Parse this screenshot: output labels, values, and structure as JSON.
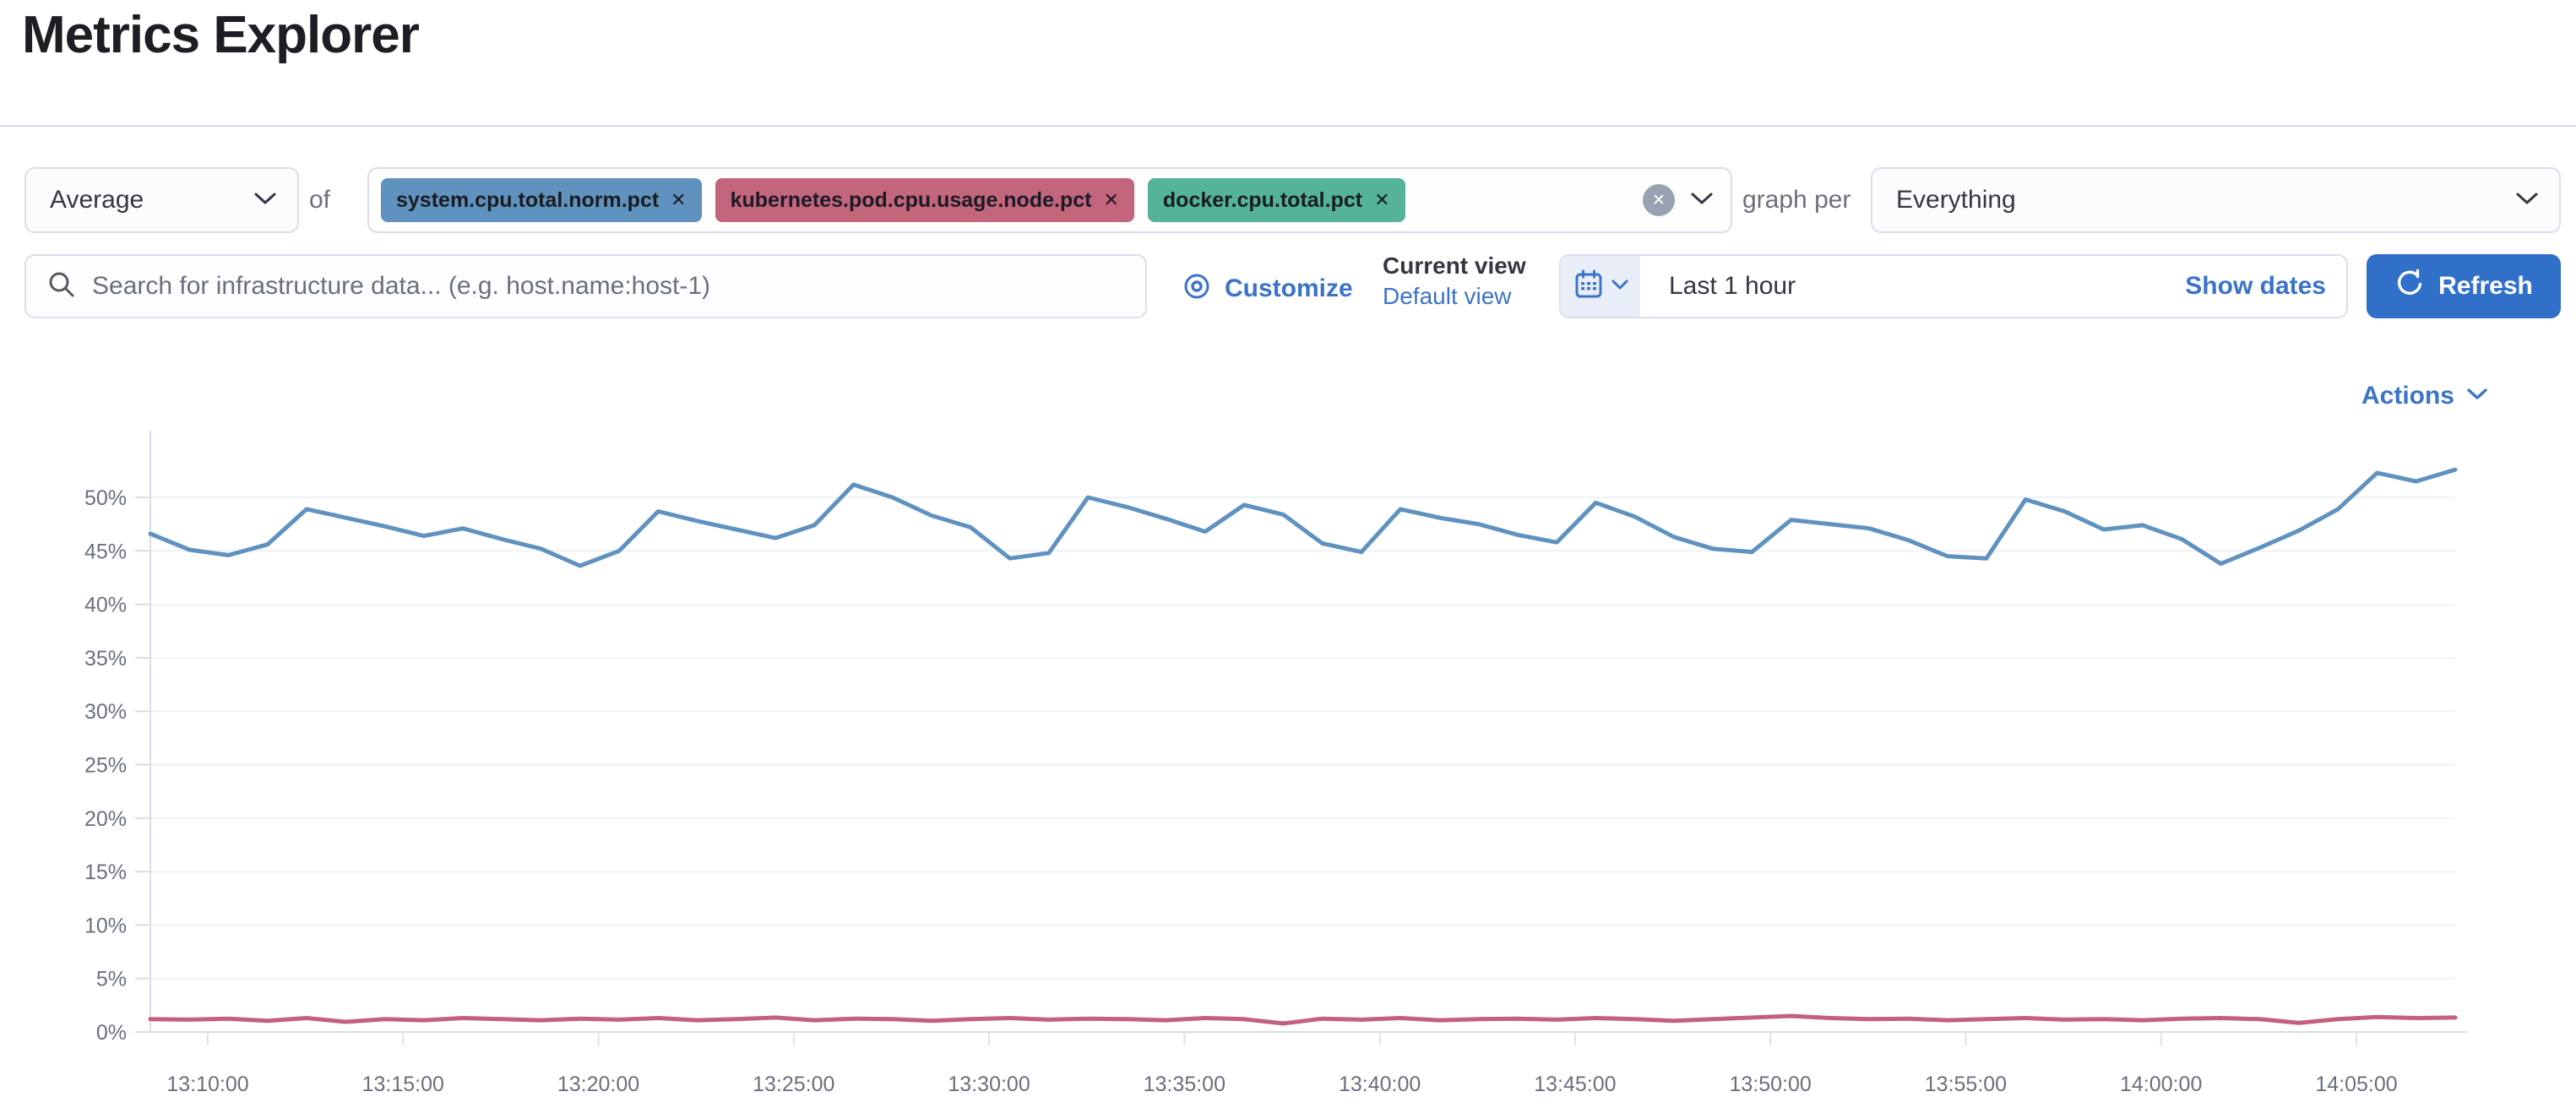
{
  "header": {
    "title": "Metrics Explorer"
  },
  "toolbar": {
    "aggregation": {
      "value": "Average"
    },
    "of_label": "of",
    "metrics": [
      {
        "label": "system.cpu.total.norm.pct",
        "color": "#6092C0"
      },
      {
        "label": "kubernetes.pod.cpu.usage.node.pct",
        "color": "#C4657E"
      },
      {
        "label": "docker.cpu.total.pct",
        "color": "#54B399"
      }
    ],
    "remove_glyph": "✕",
    "graph_per_label": "graph per",
    "group_by": {
      "value": "Everything"
    }
  },
  "search": {
    "placeholder": "Search for infrastructure data... (e.g. host.name:host-1)"
  },
  "view_controls": {
    "customize_label": "Customize",
    "current_view_label": "Current view",
    "default_view_label": "Default view"
  },
  "time_picker": {
    "value": "Last 1 hour",
    "show_dates_label": "Show dates",
    "refresh_label": "Refresh"
  },
  "actions_label": "Actions",
  "chart_data": {
    "type": "line",
    "title": "",
    "xlabel": "",
    "ylabel": "",
    "grid": true,
    "legend": "none",
    "ylim": [
      0,
      55
    ],
    "ytick_step": 5,
    "y_ticks": [
      "0%",
      "5%",
      "10%",
      "15%",
      "20%",
      "25%",
      "30%",
      "35%",
      "40%",
      "45%",
      "50%"
    ],
    "x_total_min": 59,
    "sample_interval_min": 1,
    "x_ticks": [
      {
        "offset": 1.47,
        "label": "13:10:00"
      },
      {
        "offset": 6.47,
        "label": "13:15:00"
      },
      {
        "offset": 11.47,
        "label": "13:20:00"
      },
      {
        "offset": 16.47,
        "label": "13:25:00"
      },
      {
        "offset": 21.47,
        "label": "13:30:00"
      },
      {
        "offset": 26.47,
        "label": "13:35:00"
      },
      {
        "offset": 31.47,
        "label": "13:40:00"
      },
      {
        "offset": 36.47,
        "label": "13:45:00"
      },
      {
        "offset": 41.47,
        "label": "13:50:00"
      },
      {
        "offset": 46.47,
        "label": "13:55:00"
      },
      {
        "offset": 51.47,
        "label": "14:00:00"
      },
      {
        "offset": 56.47,
        "label": "14:05:00"
      }
    ],
    "series": [
      {
        "name": "system.cpu.total.norm.pct",
        "color": "#6092C0",
        "values": [
          46.6,
          45.1,
          44.6,
          45.6,
          48.9,
          48.1,
          47.3,
          46.4,
          47.1,
          46.1,
          45.2,
          43.6,
          45.0,
          48.7,
          47.8,
          47.0,
          46.2,
          47.4,
          51.2,
          50.0,
          48.3,
          47.2,
          44.3,
          44.8,
          50.0,
          49.1,
          48.0,
          46.8,
          49.3,
          48.4,
          45.7,
          44.9,
          48.9,
          48.1,
          47.5,
          46.5,
          45.8,
          49.5,
          48.2,
          46.3,
          45.2,
          44.9,
          47.9,
          47.5,
          47.1,
          46.0,
          44.5,
          44.3,
          49.8,
          48.7,
          47.0,
          47.4,
          46.1,
          43.8,
          45.3,
          46.9,
          48.9,
          52.3,
          51.5,
          52.6
        ]
      },
      {
        "name": "kubernetes.pod.cpu.usage.node.pct",
        "color": "#C4607D",
        "values": [
          1.2,
          1.15,
          1.25,
          1.05,
          1.3,
          0.95,
          1.2,
          1.1,
          1.3,
          1.2,
          1.1,
          1.25,
          1.15,
          1.3,
          1.1,
          1.2,
          1.35,
          1.1,
          1.25,
          1.2,
          1.05,
          1.2,
          1.3,
          1.15,
          1.25,
          1.2,
          1.1,
          1.3,
          1.2,
          0.8,
          1.25,
          1.15,
          1.3,
          1.1,
          1.2,
          1.25,
          1.15,
          1.3,
          1.2,
          1.05,
          1.2,
          1.35,
          1.5,
          1.3,
          1.2,
          1.25,
          1.1,
          1.2,
          1.3,
          1.15,
          1.2,
          1.1,
          1.25,
          1.3,
          1.2,
          0.85,
          1.2,
          1.4,
          1.3,
          1.35
        ]
      }
    ]
  }
}
